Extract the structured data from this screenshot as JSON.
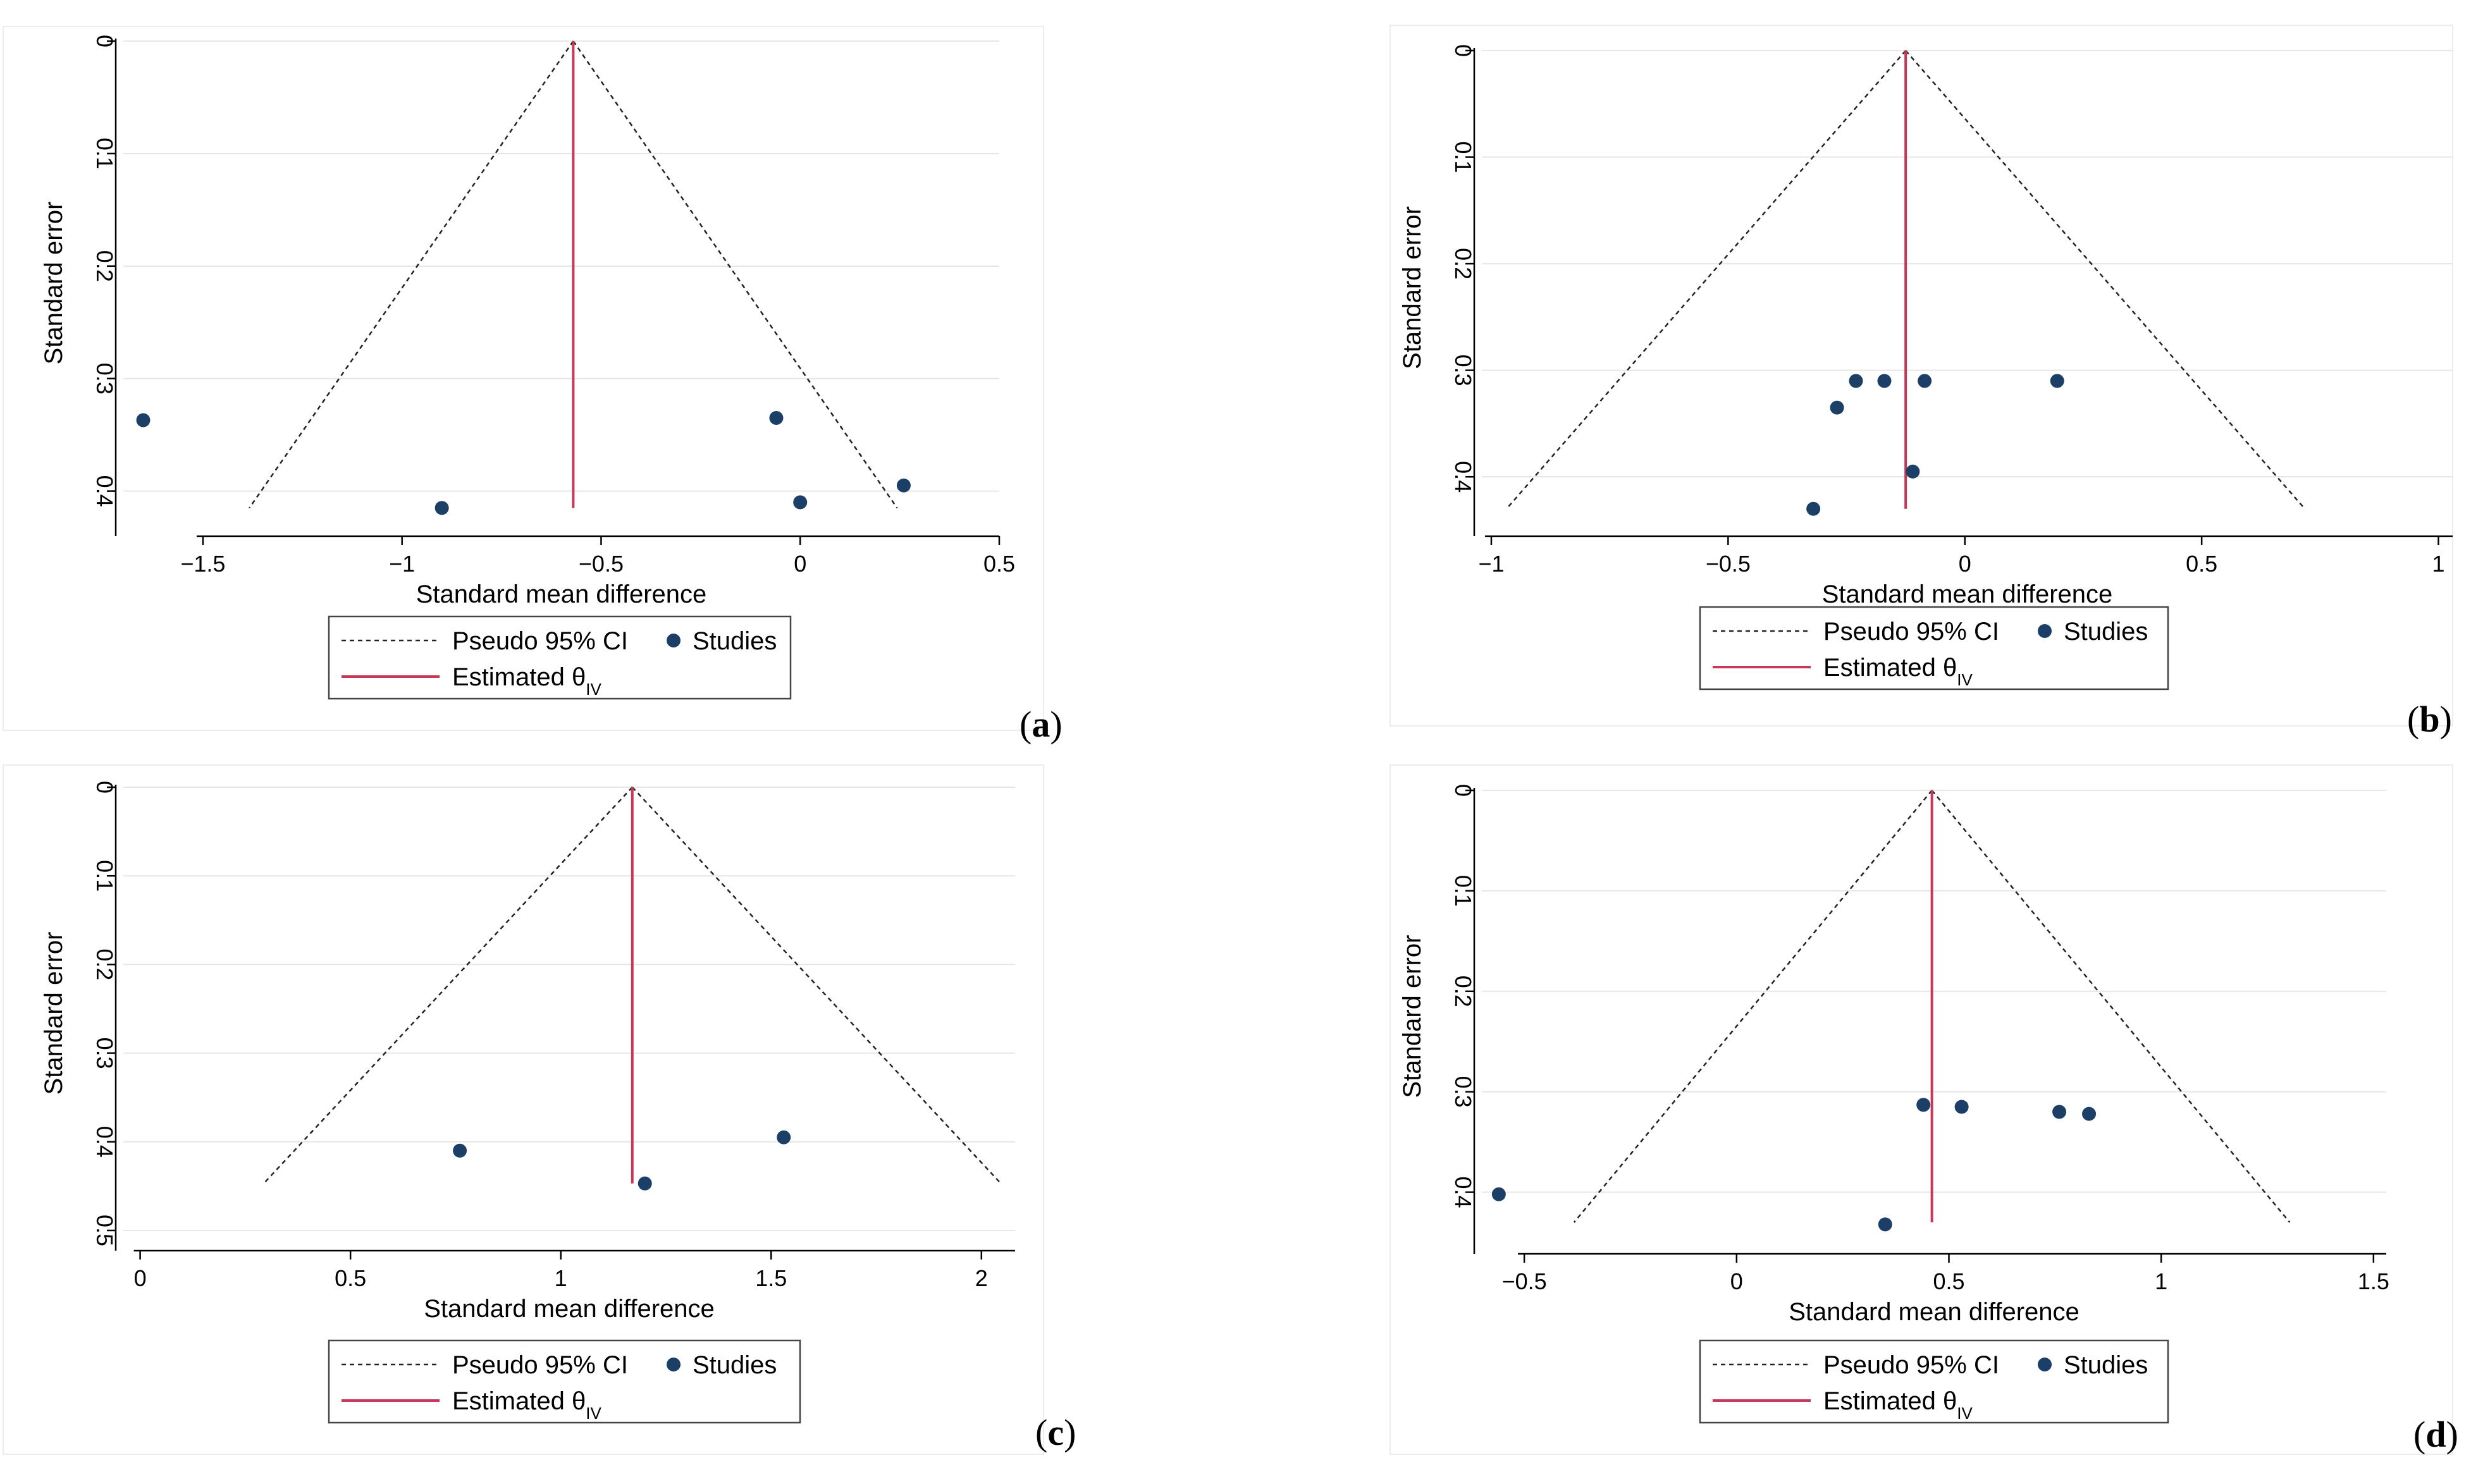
{
  "colors": {
    "ci_line": "#222222",
    "estimate_line": "#c8365a",
    "study_point": "#1b3f66",
    "grid": "#e6e6e6",
    "frame": "#ececec"
  },
  "chart_data": [
    {
      "id": "a",
      "panel_label": "a",
      "type": "scatter",
      "xlabel": "Standard mean difference",
      "ylabel": "Standard error",
      "x_ticks": [
        -1.5,
        -1,
        -0.5,
        0,
        0.5
      ],
      "x_tick_labels": [
        "−1.5",
        "−1",
        "−0.5",
        "0",
        "0.5"
      ],
      "y_ticks": [
        0,
        0.1,
        0.2,
        0.3,
        0.4
      ],
      "y_tick_labels": [
        "0",
        "0.1",
        "0.2",
        "0.3",
        "0.4"
      ],
      "xlim": [
        -1.7,
        0.5
      ],
      "ylim": [
        0.43,
        0
      ],
      "y_reversed": true,
      "grid": "horizontal",
      "estimate": -0.57,
      "se_max": 0.415,
      "studies": [
        {
          "x": -1.65,
          "y": 0.337
        },
        {
          "x": -0.9,
          "y": 0.415
        },
        {
          "x": -0.06,
          "y": 0.335
        },
        {
          "x": 0.0,
          "y": 0.41
        },
        {
          "x": 0.26,
          "y": 0.395
        }
      ],
      "legend": {
        "ci": "Pseudo 95% CI",
        "studies": "Studies",
        "estimate": "Estimated θ",
        "estimate_sub": "IV"
      }
    },
    {
      "id": "b",
      "panel_label": "b",
      "type": "scatter",
      "xlabel": "Standard mean difference",
      "ylabel": "Standard error",
      "x_ticks": [
        -1,
        -0.5,
        0,
        0.5,
        1
      ],
      "x_tick_labels": [
        "−1",
        "−0.5",
        "0",
        "0.5",
        "1"
      ],
      "y_ticks": [
        0,
        0.1,
        0.2,
        0.3,
        0.4
      ],
      "y_tick_labels": [
        "0",
        "0.1",
        "0.2",
        "0.3",
        "0.4"
      ],
      "xlim": [
        -1.02,
        1.03
      ],
      "ylim": [
        0.445,
        0
      ],
      "y_reversed": true,
      "grid": "horizontal",
      "estimate": -0.125,
      "se_max": 0.43,
      "studies": [
        {
          "x": -0.23,
          "y": 0.31
        },
        {
          "x": -0.17,
          "y": 0.31
        },
        {
          "x": -0.085,
          "y": 0.31
        },
        {
          "x": 0.195,
          "y": 0.31
        },
        {
          "x": -0.27,
          "y": 0.335
        },
        {
          "x": -0.11,
          "y": 0.395
        },
        {
          "x": -0.32,
          "y": 0.43
        }
      ],
      "legend": {
        "ci": "Pseudo 95% CI",
        "studies": "Studies",
        "estimate": "Estimated θ",
        "estimate_sub": "IV"
      }
    },
    {
      "id": "c",
      "panel_label": "c",
      "type": "scatter",
      "xlabel": "Standard mean difference",
      "ylabel": "Standard error",
      "x_ticks": [
        0,
        0.5,
        1,
        1.5,
        2
      ],
      "x_tick_labels": [
        "0",
        "0.5",
        "1",
        "1.5",
        "2"
      ],
      "y_ticks": [
        0,
        0.1,
        0.2,
        0.3,
        0.4,
        0.5
      ],
      "y_tick_labels": [
        "0",
        "0.1",
        "0.2",
        "0.3",
        "0.4",
        "0.5"
      ],
      "xlim": [
        -0.04,
        2.08
      ],
      "ylim": [
        0.51,
        0
      ],
      "y_reversed": true,
      "grid": "horizontal",
      "estimate": 1.17,
      "se_max": 0.447,
      "studies": [
        {
          "x": 0.76,
          "y": 0.41
        },
        {
          "x": 1.2,
          "y": 0.447
        },
        {
          "x": 1.53,
          "y": 0.395
        }
      ],
      "legend": {
        "ci": "Pseudo 95% CI",
        "studies": "Studies",
        "estimate": "Estimated θ",
        "estimate_sub": "IV"
      }
    },
    {
      "id": "d",
      "panel_label": "d",
      "type": "scatter",
      "xlabel": "Standard mean difference",
      "ylabel": "Standard error",
      "x_ticks": [
        -0.5,
        0,
        0.5,
        1,
        1.5
      ],
      "x_tick_labels": [
        "−0.5",
        "0",
        "0.5",
        "1",
        "1.5"
      ],
      "y_ticks": [
        0,
        0.1,
        0.2,
        0.3,
        0.4
      ],
      "y_tick_labels": [
        "0",
        "0.1",
        "0.2",
        "0.3",
        "0.4"
      ],
      "xlim": [
        -0.6,
        1.53
      ],
      "ylim": [
        0.45,
        0
      ],
      "y_reversed": true,
      "grid": "horizontal",
      "estimate": 0.46,
      "se_max": 0.43,
      "studies": [
        {
          "x": 0.44,
          "y": 0.313
        },
        {
          "x": 0.53,
          "y": 0.315
        },
        {
          "x": 0.76,
          "y": 0.32
        },
        {
          "x": 0.83,
          "y": 0.322
        },
        {
          "x": -0.56,
          "y": 0.402
        },
        {
          "x": 0.35,
          "y": 0.432
        }
      ],
      "legend": {
        "ci": "Pseudo 95% CI",
        "studies": "Studies",
        "estimate": "Estimated θ",
        "estimate_sub": "IV"
      }
    }
  ]
}
